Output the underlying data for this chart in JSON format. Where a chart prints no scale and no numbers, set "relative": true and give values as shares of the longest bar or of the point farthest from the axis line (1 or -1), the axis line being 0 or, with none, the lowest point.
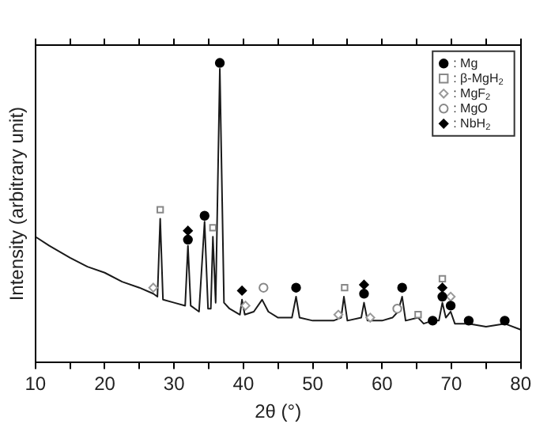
{
  "chart_data": {
    "type": "line",
    "xlabel": "2θ (°)",
    "ylabel": "Intensity (arbitrary unit)",
    "relative": true,
    "xlim": [
      10,
      80
    ],
    "xticks": [
      10,
      {
        "value": 15,
        "label": null
      },
      20,
      {
        "value": 25,
        "label": null
      },
      30,
      {
        "value": 35,
        "label": null
      },
      40,
      {
        "value": 45,
        "label": null
      },
      50,
      {
        "value": 55,
        "label": null
      },
      60,
      {
        "value": 65,
        "label": null
      },
      70,
      {
        "value": 75,
        "label": null
      },
      80
    ],
    "legend": "top right",
    "grid": false,
    "series": [
      {
        "color": "#1a1a1a",
        "marker": "none",
        "x": [
          10,
          12,
          15,
          17.5,
          20,
          22.5,
          25,
          27,
          27.6,
          28,
          28.4,
          30,
          31.6,
          32,
          32.4,
          33.6,
          34.4,
          34.9,
          35.3,
          35.6,
          36,
          36.6,
          37.2,
          38,
          39.5,
          39.8,
          40.2,
          41.5,
          42.7,
          43.6,
          45,
          47,
          47.6,
          48.1,
          50,
          53,
          54.1,
          54.5,
          55,
          57,
          57.4,
          57.9,
          60,
          61.5,
          62.3,
          62.9,
          63.4,
          65.2,
          66,
          67.3,
          68.2,
          68.7,
          69.2,
          69.9,
          70.5,
          72.5,
          75,
          77.7,
          80
        ],
        "values": [
          0.42,
          0.39,
          0.35,
          0.32,
          0.3,
          0.27,
          0.25,
          0.23,
          0.22,
          0.48,
          0.21,
          0.2,
          0.19,
          0.39,
          0.19,
          0.17,
          0.47,
          0.18,
          0.18,
          0.42,
          0.2,
          0.98,
          0.2,
          0.18,
          0.16,
          0.21,
          0.16,
          0.17,
          0.21,
          0.17,
          0.15,
          0.15,
          0.22,
          0.15,
          0.14,
          0.14,
          0.15,
          0.22,
          0.14,
          0.15,
          0.2,
          0.14,
          0.14,
          0.15,
          0.17,
          0.22,
          0.14,
          0.15,
          0.13,
          0.14,
          0.14,
          0.2,
          0.15,
          0.17,
          0.13,
          0.13,
          0.12,
          0.13,
          0.11
        ]
      },
      {
        "type": "scatter",
        "name": ": Mg",
        "color": "#000000",
        "marker": "circle",
        "x": [
          32,
          34.4,
          36.6,
          47.6,
          57.4,
          62.9,
          67.3,
          68.7,
          69.9,
          72.5,
          77.7
        ],
        "values": [
          0.41,
          0.49,
          1,
          0.25,
          0.23,
          0.25,
          0.14,
          0.22,
          0.19,
          0.14,
          0.14
        ]
      },
      {
        "type": "scatter",
        "name": ": β-MgH$_{2}$",
        "color": "#888888",
        "marker": "square",
        "x": [
          28,
          35.6,
          54.6,
          65.2,
          68.7
        ],
        "values": [
          0.51,
          0.45,
          0.25,
          0.16,
          0.28
        ]
      },
      {
        "type": "scatter",
        "name": ": MgF$_{2}$",
        "color": "#999999",
        "marker": "diamond",
        "x": [
          27,
          40.3,
          53.7,
          58.3,
          69.9
        ],
        "values": [
          0.25,
          0.19,
          0.16,
          0.15,
          0.22
        ]
      },
      {
        "type": "scatter",
        "name": ": MgO",
        "color": "#888888",
        "marker": "circle",
        "x": [
          42.9,
          62.2
        ],
        "values": [
          0.25,
          0.18
        ]
      },
      {
        "type": "scatter",
        "name": ": NbH$_{2}$",
        "color": "#000000",
        "marker": "diamond",
        "x": [
          32,
          39.8,
          57.4,
          68.7
        ],
        "values": [
          0.44,
          0.24,
          0.26,
          0.25
        ]
      }
    ]
  }
}
